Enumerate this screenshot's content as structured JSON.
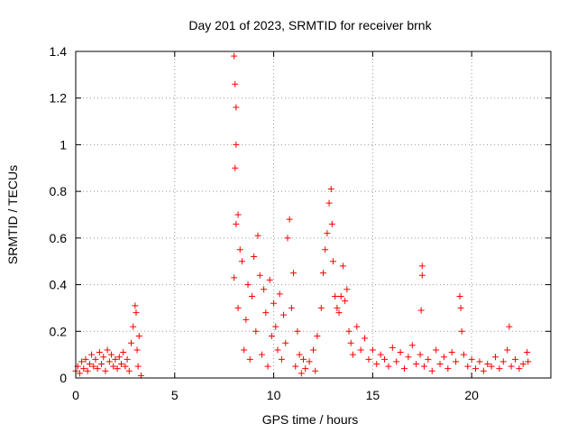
{
  "chart_data": {
    "type": "scatter",
    "title": "Day 201 of 2023, SRMTID for receiver brnk",
    "xlabel": "GPS time / hours",
    "ylabel": "SRMTID / TECUs",
    "xlim": [
      0,
      24
    ],
    "ylim": [
      0,
      1.4
    ],
    "x_ticks": [
      0,
      5,
      10,
      15,
      20
    ],
    "x_tick_labels": [
      "0",
      "5",
      "10",
      "15",
      "20"
    ],
    "y_ticks": [
      0,
      0.2,
      0.4,
      0.6,
      0.8,
      1.0,
      1.2,
      1.4
    ],
    "y_tick_labels": [
      "0",
      "0.2",
      "0.4",
      "0.6",
      "0.8",
      "1",
      "1.2",
      "1.4"
    ],
    "grid": true,
    "marker": "plus",
    "color": "#ff0000",
    "series": [
      {
        "name": "SRMTID",
        "points": [
          [
            0.0,
            0.03
          ],
          [
            0.1,
            0.05
          ],
          [
            0.2,
            0.02
          ],
          [
            0.3,
            0.07
          ],
          [
            0.4,
            0.04
          ],
          [
            0.5,
            0.08
          ],
          [
            0.6,
            0.03
          ],
          [
            0.7,
            0.06
          ],
          [
            0.8,
            0.1
          ],
          [
            0.9,
            0.05
          ],
          [
            1.0,
            0.08
          ],
          [
            1.1,
            0.04
          ],
          [
            1.2,
            0.11
          ],
          [
            1.3,
            0.06
          ],
          [
            1.4,
            0.09
          ],
          [
            1.5,
            0.03
          ],
          [
            1.6,
            0.12
          ],
          [
            1.7,
            0.07
          ],
          [
            1.8,
            0.1
          ],
          [
            1.9,
            0.05
          ],
          [
            2.0,
            0.08
          ],
          [
            2.1,
            0.04
          ],
          [
            2.2,
            0.09
          ],
          [
            2.3,
            0.06
          ],
          [
            2.4,
            0.11
          ],
          [
            2.5,
            0.05
          ],
          [
            2.6,
            0.08
          ],
          [
            2.7,
            0.03
          ],
          [
            2.8,
            0.15
          ],
          [
            2.9,
            0.22
          ],
          [
            3.0,
            0.31
          ],
          [
            3.05,
            0.28
          ],
          [
            3.1,
            0.12
          ],
          [
            3.15,
            0.05
          ],
          [
            3.2,
            0.18
          ],
          [
            3.3,
            0.01
          ],
          [
            8.0,
            1.38
          ],
          [
            8.05,
            1.26
          ],
          [
            8.1,
            1.16
          ],
          [
            8.1,
            1.0
          ],
          [
            8.05,
            0.9
          ],
          [
            8.1,
            0.66
          ],
          [
            8.2,
            0.7
          ],
          [
            8.3,
            0.55
          ],
          [
            8.0,
            0.43
          ],
          [
            8.2,
            0.3
          ],
          [
            8.4,
            0.5
          ],
          [
            8.5,
            0.12
          ],
          [
            8.6,
            0.25
          ],
          [
            8.7,
            0.4
          ],
          [
            8.8,
            0.08
          ],
          [
            8.9,
            0.35
          ],
          [
            9.0,
            0.52
          ],
          [
            9.1,
            0.2
          ],
          [
            9.2,
            0.61
          ],
          [
            9.3,
            0.44
          ],
          [
            9.4,
            0.1
          ],
          [
            9.5,
            0.38
          ],
          [
            9.6,
            0.28
          ],
          [
            9.7,
            0.05
          ],
          [
            9.8,
            0.42
          ],
          [
            9.9,
            0.18
          ],
          [
            10.0,
            0.32
          ],
          [
            10.1,
            0.22
          ],
          [
            10.2,
            0.12
          ],
          [
            10.3,
            0.36
          ],
          [
            10.4,
            0.08
          ],
          [
            10.5,
            0.27
          ],
          [
            10.6,
            0.15
          ],
          [
            10.7,
            0.6
          ],
          [
            10.8,
            0.68
          ],
          [
            10.9,
            0.3
          ],
          [
            11.0,
            0.45
          ],
          [
            11.1,
            0.05
          ],
          [
            11.2,
            0.2
          ],
          [
            11.3,
            0.1
          ],
          [
            11.4,
            0.02
          ],
          [
            11.5,
            0.08
          ],
          [
            11.6,
            0.04
          ],
          [
            11.8,
            0.07
          ],
          [
            12.0,
            0.12
          ],
          [
            12.1,
            0.03
          ],
          [
            12.2,
            0.18
          ],
          [
            12.4,
            0.3
          ],
          [
            12.5,
            0.45
          ],
          [
            12.6,
            0.55
          ],
          [
            12.7,
            0.62
          ],
          [
            12.8,
            0.75
          ],
          [
            12.9,
            0.81
          ],
          [
            12.95,
            0.66
          ],
          [
            13.0,
            0.5
          ],
          [
            13.1,
            0.35
          ],
          [
            13.2,
            0.3
          ],
          [
            13.3,
            0.28
          ],
          [
            13.4,
            0.35
          ],
          [
            13.5,
            0.48
          ],
          [
            13.6,
            0.33
          ],
          [
            13.7,
            0.38
          ],
          [
            13.8,
            0.2
          ],
          [
            13.9,
            0.15
          ],
          [
            14.0,
            0.1
          ],
          [
            14.2,
            0.22
          ],
          [
            14.4,
            0.12
          ],
          [
            14.6,
            0.17
          ],
          [
            14.8,
            0.08
          ],
          [
            15.0,
            0.12
          ],
          [
            15.2,
            0.06
          ],
          [
            15.4,
            0.1
          ],
          [
            15.6,
            0.08
          ],
          [
            15.8,
            0.05
          ],
          [
            16.0,
            0.13
          ],
          [
            16.2,
            0.07
          ],
          [
            16.4,
            0.11
          ],
          [
            16.6,
            0.04
          ],
          [
            16.8,
            0.09
          ],
          [
            17.0,
            0.14
          ],
          [
            17.2,
            0.06
          ],
          [
            17.4,
            0.1
          ],
          [
            17.5,
            0.48
          ],
          [
            17.5,
            0.44
          ],
          [
            17.45,
            0.29
          ],
          [
            17.6,
            0.05
          ],
          [
            17.8,
            0.08
          ],
          [
            18.0,
            0.03
          ],
          [
            18.2,
            0.12
          ],
          [
            18.4,
            0.06
          ],
          [
            18.6,
            0.09
          ],
          [
            18.8,
            0.04
          ],
          [
            19.0,
            0.11
          ],
          [
            19.2,
            0.07
          ],
          [
            19.4,
            0.35
          ],
          [
            19.45,
            0.3
          ],
          [
            19.5,
            0.2
          ],
          [
            19.6,
            0.1
          ],
          [
            19.8,
            0.05
          ],
          [
            20.0,
            0.08
          ],
          [
            20.2,
            0.04
          ],
          [
            20.4,
            0.07
          ],
          [
            20.6,
            0.03
          ],
          [
            20.8,
            0.06
          ],
          [
            21.0,
            0.05
          ],
          [
            21.2,
            0.09
          ],
          [
            21.4,
            0.04
          ],
          [
            21.6,
            0.07
          ],
          [
            21.8,
            0.12
          ],
          [
            21.9,
            0.22
          ],
          [
            22.0,
            0.05
          ],
          [
            22.2,
            0.08
          ],
          [
            22.4,
            0.04
          ],
          [
            22.6,
            0.06
          ],
          [
            22.8,
            0.11
          ],
          [
            22.85,
            0.07
          ]
        ]
      }
    ]
  }
}
